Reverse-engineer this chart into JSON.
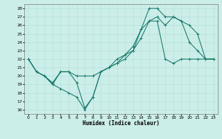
{
  "xlabel": "Humidex (Indice chaleur)",
  "bg_color": "#cceee8",
  "grid_color": "#aadddd",
  "line_color": "#1a7a6e",
  "xlim": [
    -0.5,
    23.5
  ],
  "ylim": [
    15.5,
    28.5
  ],
  "xticks": [
    0,
    1,
    2,
    3,
    4,
    5,
    6,
    7,
    8,
    9,
    10,
    11,
    12,
    13,
    14,
    15,
    16,
    17,
    18,
    19,
    20,
    21,
    22,
    23
  ],
  "yticks": [
    16,
    17,
    18,
    19,
    20,
    21,
    22,
    23,
    24,
    25,
    26,
    27,
    28
  ],
  "line1_x": [
    0,
    1,
    2,
    3,
    4,
    5,
    6,
    7,
    8,
    9,
    10,
    11,
    12,
    13,
    14,
    15,
    16,
    17,
    18,
    19,
    20,
    21,
    22,
    23
  ],
  "line1_y": [
    22,
    20.5,
    20,
    19,
    20.5,
    20.5,
    20,
    20,
    20,
    20.5,
    21,
    21.5,
    22,
    23,
    24.5,
    26.5,
    27,
    26,
    27,
    26.5,
    26,
    25,
    22,
    22
  ],
  "line2_x": [
    0,
    1,
    2,
    3,
    4,
    5,
    6,
    7,
    8,
    9,
    10,
    11,
    12,
    13,
    14,
    15,
    16,
    17,
    18,
    19,
    20,
    21,
    22,
    23
  ],
  "line2_y": [
    22,
    20.5,
    20,
    19,
    18.5,
    18,
    17.5,
    16,
    17.5,
    20.5,
    21,
    21.5,
    22.5,
    23,
    25.5,
    28,
    28,
    27,
    27,
    26.5,
    24,
    23,
    22,
    22
  ],
  "line3_x": [
    0,
    1,
    2,
    3,
    4,
    5,
    6,
    7,
    8,
    9,
    10,
    11,
    12,
    13,
    14,
    15,
    16,
    17,
    18,
    19,
    20,
    21,
    22,
    23
  ],
  "line3_y": [
    22,
    20.5,
    20,
    19.2,
    20.5,
    20.5,
    19.2,
    16.2,
    17.5,
    20.5,
    21,
    22,
    22.5,
    23.5,
    25.5,
    26.5,
    26.5,
    22,
    21.5,
    22,
    22,
    22,
    22,
    22
  ]
}
